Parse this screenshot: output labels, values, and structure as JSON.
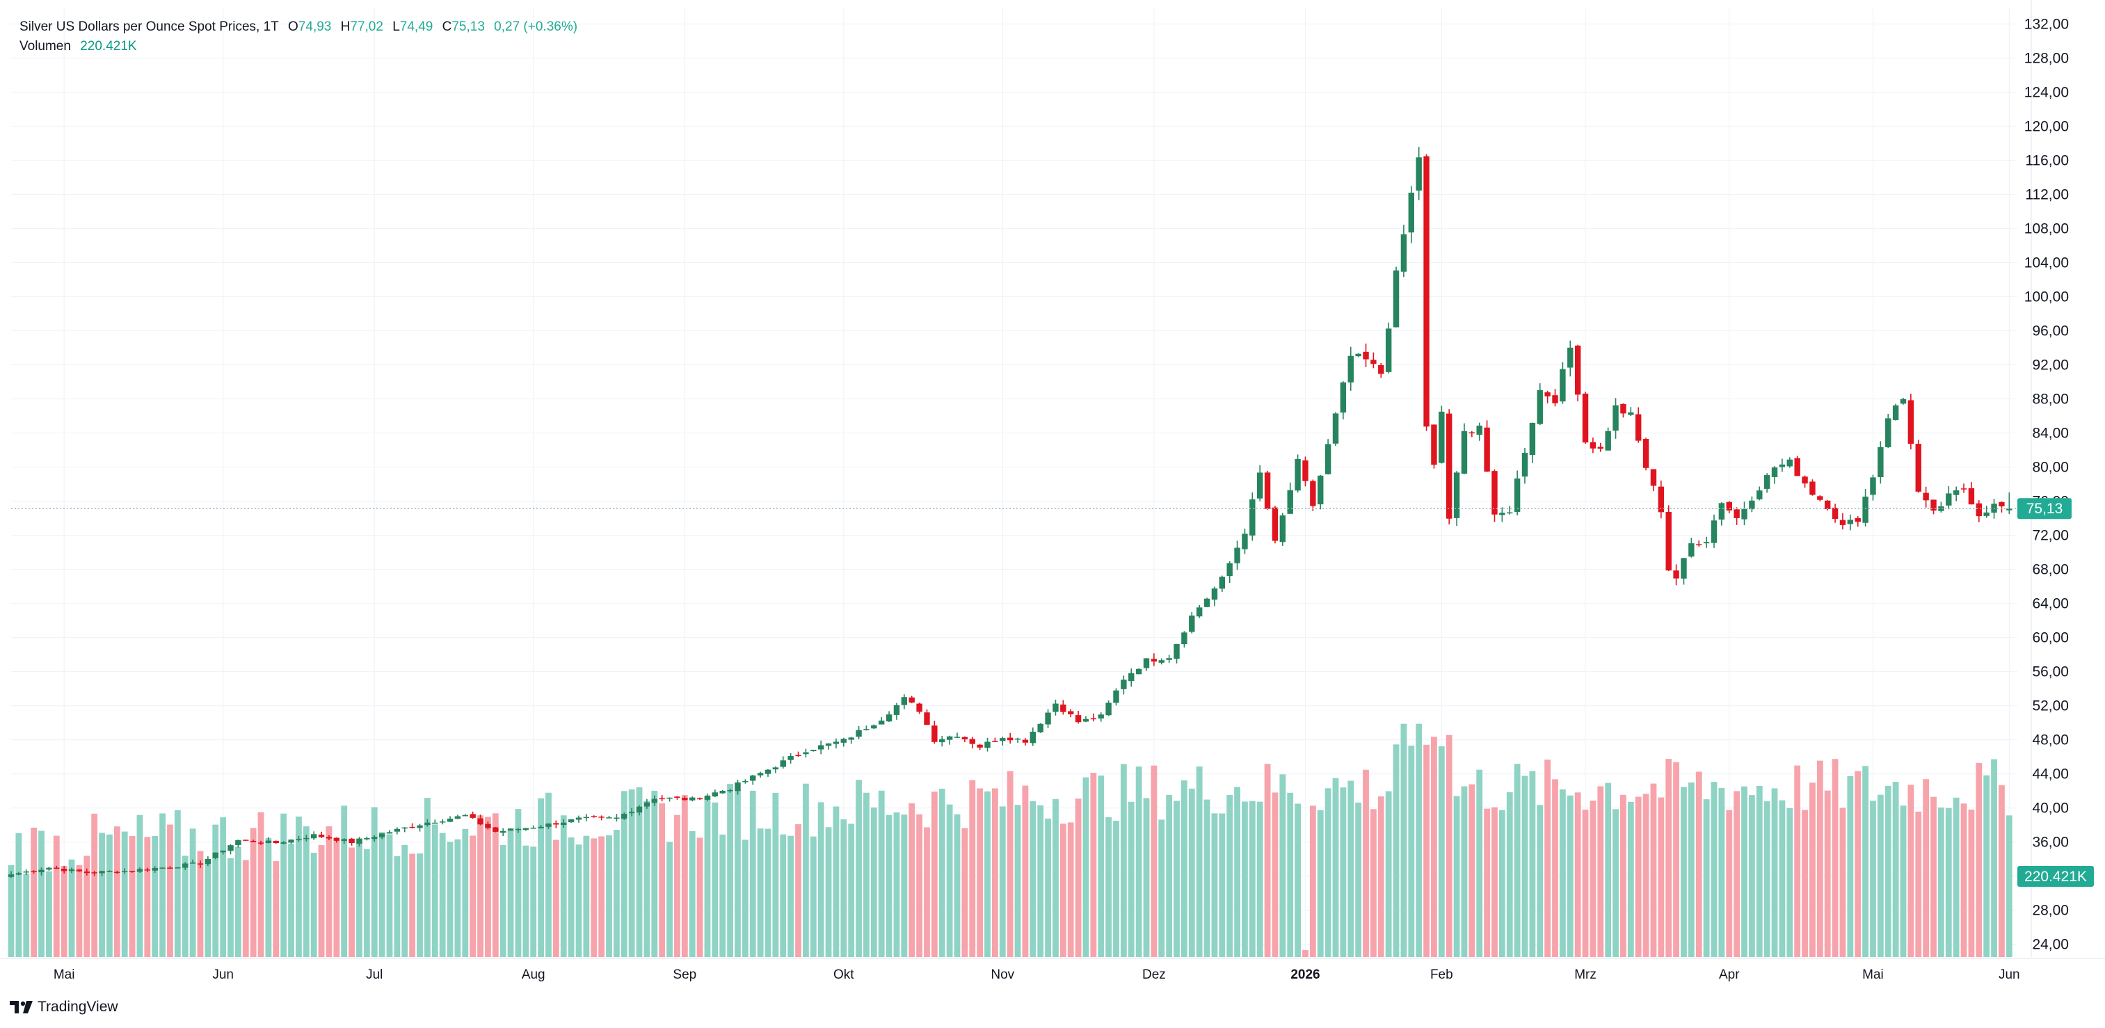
{
  "header": {
    "symbol_title": "Silver US Dollars per Ounce Spot Prices, 1T",
    "open_label": "O",
    "open_value": "74,93",
    "high_label": "H",
    "high_value": "77,02",
    "low_label": "L",
    "low_value": "74,49",
    "close_label": "C",
    "close_value": "75,13",
    "change": "0,27 (+0.36%)",
    "volume_label": "Volumen",
    "volume_value": "220.421K"
  },
  "price_badge": "75,13",
  "volume_badge": "220.421K",
  "brand": {
    "logo_icon": "tradingview-logo-icon",
    "name": "TradingView"
  },
  "colors": {
    "up": "#26845e",
    "down": "#e0141e",
    "volume_up": "#8fd3c5",
    "volume_down": "#f7a3ab",
    "badge": "#22ab94",
    "grid": "#f0f3fa"
  },
  "chart_data": {
    "type": "candlestick",
    "title": "Silver US Dollars per Ounce Spot Prices, 1T",
    "y_axis": {
      "ticks": [
        "24,00",
        "28,00",
        "32,00",
        "36,00",
        "40,00",
        "44,00",
        "48,00",
        "52,00",
        "56,00",
        "60,00",
        "64,00",
        "68,00",
        "72,00",
        "76,00",
        "80,00",
        "84,00",
        "88,00",
        "92,00",
        "96,00",
        "100,00",
        "104,00",
        "108,00",
        "112,00",
        "116,00",
        "120,00",
        "124,00",
        "128,00",
        "132,00"
      ],
      "range": [
        22.5,
        134
      ],
      "position": "right"
    },
    "x_axis": {
      "ticks": [
        "Mai",
        "Jun",
        "Jul",
        "Aug",
        "Sep",
        "Okt",
        "Nov",
        "Dez",
        "2026",
        "Feb",
        "Mrz",
        "Apr",
        "Mai",
        "Jun"
      ],
      "bold_ticks": [
        "2026"
      ]
    },
    "last_price": 75.13,
    "grid": true,
    "series": [
      {
        "name": "Silver US Dollars per Ounce Spot Prices",
        "keypoints": [
          {
            "i": 0,
            "close": 32.2
          },
          {
            "i": 5,
            "close": 33.0
          },
          {
            "i": 10,
            "close": 32.4
          },
          {
            "i": 15,
            "close": 32.6
          },
          {
            "i": 20,
            "close": 33.0
          },
          {
            "i": 25,
            "close": 33.5
          },
          {
            "i": 30,
            "close": 36.2
          },
          {
            "i": 35,
            "close": 35.9
          },
          {
            "i": 40,
            "close": 36.8
          },
          {
            "i": 45,
            "close": 36.0
          },
          {
            "i": 50,
            "close": 37.2
          },
          {
            "i": 55,
            "close": 38.3
          },
          {
            "i": 60,
            "close": 39.1
          },
          {
            "i": 64,
            "close": 37.2
          },
          {
            "i": 70,
            "close": 37.9
          },
          {
            "i": 75,
            "close": 38.7
          },
          {
            "i": 80,
            "close": 38.8
          },
          {
            "i": 85,
            "close": 41.2
          },
          {
            "i": 90,
            "close": 41.0
          },
          {
            "i": 95,
            "close": 42.3
          },
          {
            "i": 100,
            "close": 44.5
          },
          {
            "i": 105,
            "close": 46.8
          },
          {
            "i": 110,
            "close": 47.9
          },
          {
            "i": 115,
            "close": 50.5
          },
          {
            "i": 118,
            "close": 52.8
          },
          {
            "i": 120,
            "close": 51.5
          },
          {
            "i": 122,
            "close": 48.0
          },
          {
            "i": 125,
            "close": 48.6
          },
          {
            "i": 128,
            "close": 47.2
          },
          {
            "i": 131,
            "close": 48.4
          },
          {
            "i": 134,
            "close": 47.9
          },
          {
            "i": 138,
            "close": 52.3
          },
          {
            "i": 141,
            "close": 50.1
          },
          {
            "i": 144,
            "close": 50.7
          },
          {
            "i": 147,
            "close": 55.2
          },
          {
            "i": 150,
            "close": 57.3
          },
          {
            "i": 153,
            "close": 57.8
          },
          {
            "i": 156,
            "close": 62.5
          },
          {
            "i": 160,
            "close": 66.8
          },
          {
            "i": 163,
            "close": 72.5
          },
          {
            "i": 165,
            "close": 79.2
          },
          {
            "i": 167,
            "close": 71.0
          },
          {
            "i": 170,
            "close": 80.5
          },
          {
            "i": 172,
            "close": 75.5
          },
          {
            "i": 175,
            "close": 86.0
          },
          {
            "i": 177,
            "close": 93.0
          },
          {
            "i": 179,
            "close": 92.5
          },
          {
            "i": 181,
            "close": 91.0
          },
          {
            "i": 183,
            "close": 102.5
          },
          {
            "i": 185,
            "close": 112.0
          },
          {
            "i": 186,
            "close": 116.5
          },
          {
            "i": 187,
            "close": 84.5
          },
          {
            "i": 188,
            "close": 80.0
          },
          {
            "i": 189,
            "close": 86.5
          },
          {
            "i": 190,
            "close": 74.0
          },
          {
            "i": 192,
            "close": 84.0
          },
          {
            "i": 194,
            "close": 85.0
          },
          {
            "i": 196,
            "close": 74.0
          },
          {
            "i": 198,
            "close": 75.0
          },
          {
            "i": 200,
            "close": 82.0
          },
          {
            "i": 202,
            "close": 89.0
          },
          {
            "i": 204,
            "close": 88.0
          },
          {
            "i": 206,
            "close": 94.0
          },
          {
            "i": 207,
            "close": 89.0
          },
          {
            "i": 208,
            "close": 83.0
          },
          {
            "i": 210,
            "close": 82.0
          },
          {
            "i": 212,
            "close": 87.0
          },
          {
            "i": 214,
            "close": 86.0
          },
          {
            "i": 216,
            "close": 80.0
          },
          {
            "i": 218,
            "close": 75.0
          },
          {
            "i": 219,
            "close": 68.0
          },
          {
            "i": 220,
            "close": 67.0
          },
          {
            "i": 222,
            "close": 71.0
          },
          {
            "i": 224,
            "close": 71.5
          },
          {
            "i": 226,
            "close": 76.0
          },
          {
            "i": 228,
            "close": 74.0
          },
          {
            "i": 230,
            "close": 76.5
          },
          {
            "i": 233,
            "close": 80.0
          },
          {
            "i": 235,
            "close": 80.5
          },
          {
            "i": 238,
            "close": 77.0
          },
          {
            "i": 240,
            "close": 75.5
          },
          {
            "i": 242,
            "close": 73.0
          },
          {
            "i": 244,
            "close": 74.0
          },
          {
            "i": 246,
            "close": 79.0
          },
          {
            "i": 248,
            "close": 86.0
          },
          {
            "i": 250,
            "close": 88.0
          },
          {
            "i": 251,
            "close": 83.0
          },
          {
            "i": 252,
            "close": 77.0
          },
          {
            "i": 254,
            "close": 74.5
          },
          {
            "i": 256,
            "close": 76.5
          },
          {
            "i": 258,
            "close": 77.5
          },
          {
            "i": 260,
            "close": 74.5
          },
          {
            "i": 262,
            "close": 75.5
          },
          {
            "i": 264,
            "close": 75.13
          }
        ],
        "last_candle": {
          "open": 74.93,
          "high": 77.02,
          "low": 74.49,
          "close": 75.13,
          "volume": "220.421K"
        }
      }
    ]
  }
}
